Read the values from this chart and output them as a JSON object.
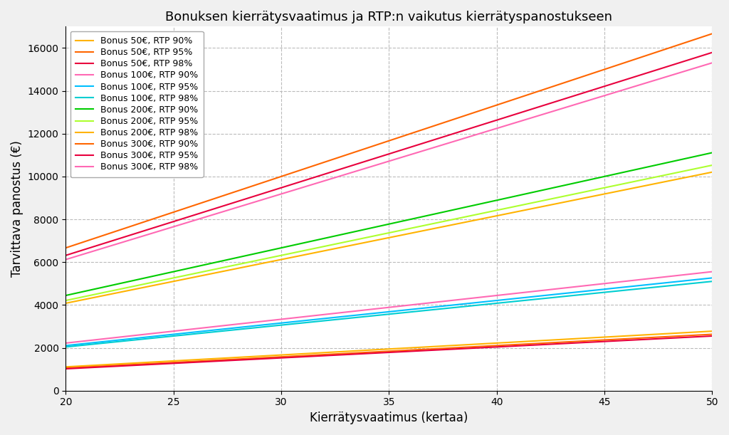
{
  "title": "Bonuksen kierrätysvaatimus ja RTP:n vaikutus kierrätyspanostukseen",
  "xlabel": "Kierrätysvaatimus (kertaa)",
  "ylabel": "Tarvittava panostus (€)",
  "x_start": 20,
  "x_end": 50,
  "series": [
    {
      "bonus": 50,
      "rtp": 0.9,
      "label": "Bonus 50€, RTP 90%",
      "color": "#FFB300",
      "lw": 1.5
    },
    {
      "bonus": 50,
      "rtp": 0.95,
      "label": "Bonus 50€, RTP 95%",
      "color": "#FF6600",
      "lw": 1.5
    },
    {
      "bonus": 50,
      "rtp": 0.98,
      "label": "Bonus 50€, RTP 98%",
      "color": "#E8003D",
      "lw": 1.5
    },
    {
      "bonus": 100,
      "rtp": 0.9,
      "label": "Bonus 100€, RTP 90%",
      "color": "#FF69B4",
      "lw": 1.5
    },
    {
      "bonus": 100,
      "rtp": 0.95,
      "label": "Bonus 100€, RTP 95%",
      "color": "#00BFFF",
      "lw": 1.5
    },
    {
      "bonus": 100,
      "rtp": 0.98,
      "label": "Bonus 100€, RTP 98%",
      "color": "#00CED1",
      "lw": 1.5
    },
    {
      "bonus": 200,
      "rtp": 0.9,
      "label": "Bonus 200€, RTP 90%",
      "color": "#00CC00",
      "lw": 1.5
    },
    {
      "bonus": 200,
      "rtp": 0.95,
      "label": "Bonus 200€, RTP 95%",
      "color": "#ADFF2F",
      "lw": 1.5
    },
    {
      "bonus": 200,
      "rtp": 0.98,
      "label": "Bonus 200€, RTP 98%",
      "color": "#FFB300",
      "lw": 1.5
    },
    {
      "bonus": 300,
      "rtp": 0.9,
      "label": "Bonus 300€, RTP 90%",
      "color": "#FF6600",
      "lw": 1.5
    },
    {
      "bonus": 300,
      "rtp": 0.95,
      "label": "Bonus 300€, RTP 95%",
      "color": "#E8003D",
      "lw": 1.5
    },
    {
      "bonus": 300,
      "rtp": 0.98,
      "label": "Bonus 300€, RTP 98%",
      "color": "#FF69B4",
      "lw": 1.5
    }
  ],
  "ylim": [
    0,
    17000
  ],
  "yticks": [
    0,
    2000,
    4000,
    6000,
    8000,
    10000,
    12000,
    14000,
    16000
  ],
  "xticks": [
    20,
    25,
    30,
    35,
    40,
    45,
    50
  ],
  "bg_color": "#f0f0f0",
  "grid_color": "#bbbbbb"
}
